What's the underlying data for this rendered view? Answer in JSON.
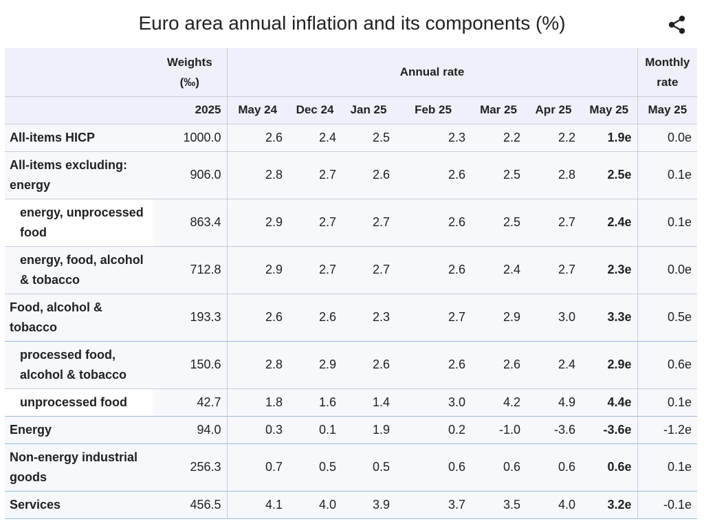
{
  "title": "Euro area annual inflation and its components (%)",
  "share_icon": "share-icon",
  "header": {
    "weights_label": "Weights (‰)",
    "annual_rate_label": "Annual rate",
    "monthly_rate_label": "Monthly rate",
    "weights_year": "2025",
    "annual_periods": [
      "May 24",
      "Dec 24",
      "Jan 25",
      "Feb 25",
      "Mar 25",
      "Apr 25",
      "May 25"
    ],
    "monthly_period": "May 25"
  },
  "rows": [
    {
      "label": "All-items HICP",
      "indent": false,
      "weight": "1000.0",
      "annual": [
        "2.6",
        "2.4",
        "2.5",
        "2.3",
        "2.2",
        "2.2",
        "1.9e"
      ],
      "monthly": "0.0e"
    },
    {
      "label": "All-items excluding: energy",
      "indent": false,
      "weight": "906.0",
      "annual": [
        "2.8",
        "2.7",
        "2.6",
        "2.6",
        "2.5",
        "2.8",
        "2.5e"
      ],
      "monthly": "0.1e"
    },
    {
      "label": "energy, unprocessed food",
      "indent": true,
      "weight": "863.4",
      "annual": [
        "2.9",
        "2.7",
        "2.7",
        "2.6",
        "2.5",
        "2.7",
        "2.4e"
      ],
      "monthly": "0.1e"
    },
    {
      "label": "energy, food, alcohol & tobacco",
      "indent": true,
      "weight": "712.8",
      "annual": [
        "2.9",
        "2.7",
        "2.7",
        "2.6",
        "2.4",
        "2.7",
        "2.3e"
      ],
      "monthly": "0.0e"
    },
    {
      "label": "Food, alcohol & tobacco",
      "indent": false,
      "weight": "193.3",
      "annual": [
        "2.6",
        "2.6",
        "2.3",
        "2.7",
        "2.9",
        "3.0",
        "3.3e"
      ],
      "monthly": "0.5e"
    },
    {
      "label": "processed food, alcohol & tobacco",
      "indent": true,
      "weight": "150.6",
      "annual": [
        "2.8",
        "2.9",
        "2.6",
        "2.6",
        "2.6",
        "2.4",
        "2.9e"
      ],
      "monthly": "0.6e"
    },
    {
      "label": "unprocessed food",
      "indent": true,
      "weight": "42.7",
      "annual": [
        "1.8",
        "1.6",
        "1.4",
        "3.0",
        "4.2",
        "4.9",
        "4.4e"
      ],
      "monthly": "0.1e"
    },
    {
      "label": "Energy",
      "indent": false,
      "weight": "94.0",
      "annual": [
        "0.3",
        "0.1",
        "1.9",
        "0.2",
        "-1.0",
        "-3.6",
        "-3.6e"
      ],
      "monthly": "-1.2e"
    },
    {
      "label": "Non-energy industrial goods",
      "indent": false,
      "weight": "256.3",
      "annual": [
        "0.7",
        "0.5",
        "0.5",
        "0.6",
        "0.6",
        "0.6",
        "0.6e"
      ],
      "monthly": "0.1e"
    },
    {
      "label": "Services",
      "indent": false,
      "weight": "456.5",
      "annual": [
        "4.1",
        "4.0",
        "3.9",
        "3.7",
        "3.5",
        "4.0",
        "3.2e"
      ],
      "monthly": "-0.1e"
    }
  ]
}
